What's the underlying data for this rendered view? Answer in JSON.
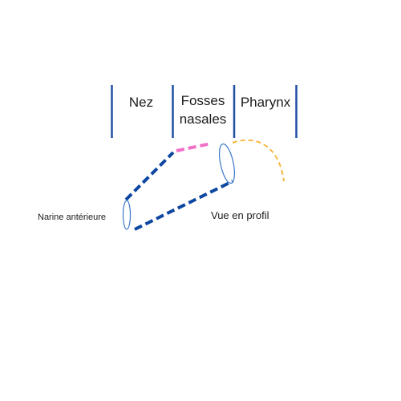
{
  "sections": {
    "nose": "Nez",
    "nasal_cavity_line1": "Fosses",
    "nasal_cavity_line2": "nasales",
    "pharynx": "Pharynx"
  },
  "labels": {
    "anterior_nostril": "Narine  antérieure",
    "profile_view": "Vue en profil"
  },
  "colors": {
    "divider": "#1f4fa3",
    "nose_outline": "#0d47a1",
    "nasal_segment": "#f06fc7",
    "pharynx_curve": "#f5b942",
    "opening_outline": "#3a78c9"
  }
}
